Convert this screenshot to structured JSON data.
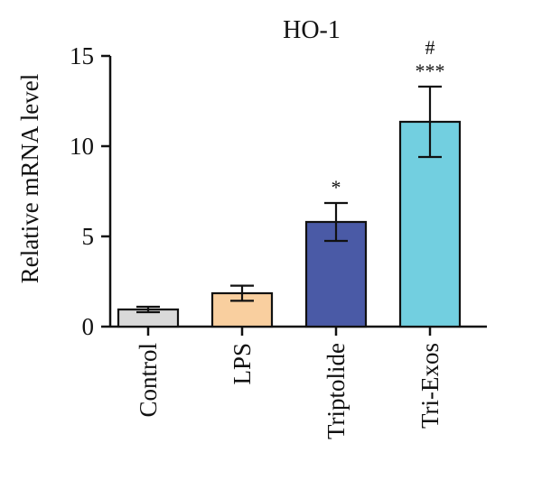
{
  "chart_data": {
    "type": "bar",
    "title": "HO-1",
    "xlabel": "",
    "ylabel": "Relative mRNA level",
    "ylim": [
      0,
      15
    ],
    "yticks": [
      0,
      5,
      10,
      15
    ],
    "categories": [
      "Control",
      "LPS",
      "Triptolide",
      "Tri-Exos"
    ],
    "values": [
      0.95,
      1.85,
      5.8,
      11.35
    ],
    "errors": [
      0.15,
      0.42,
      1.05,
      1.95
    ],
    "colors": [
      "#d9d9d9",
      "#f9cf9f",
      "#4a5aa6",
      "#72cfe0"
    ],
    "annotations": [
      {
        "category": "Triptolide",
        "lines": [
          "*"
        ]
      },
      {
        "category": "Tri-Exos",
        "lines": [
          "#",
          "***"
        ]
      }
    ],
    "grid": false,
    "legend": "none"
  }
}
